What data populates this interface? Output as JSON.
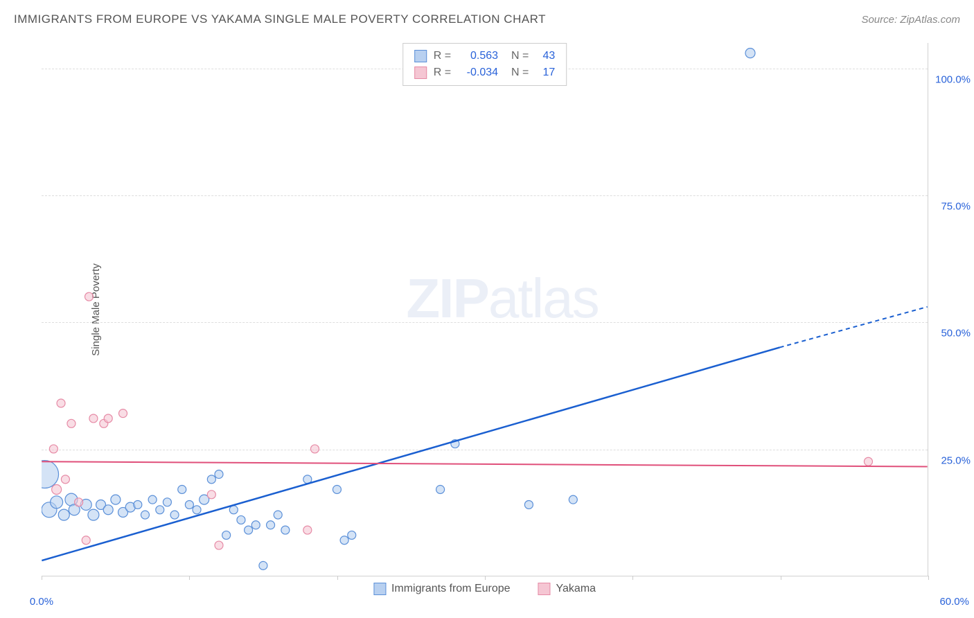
{
  "title": "IMMIGRANTS FROM EUROPE VS YAKAMA SINGLE MALE POVERTY CORRELATION CHART",
  "source": "Source: ZipAtlas.com",
  "ylabel": "Single Male Poverty",
  "watermark_a": "ZIP",
  "watermark_b": "atlas",
  "chart": {
    "type": "scatter",
    "xlim": [
      0,
      60
    ],
    "ylim": [
      0,
      105
    ],
    "xticks": [
      0,
      10,
      20,
      30,
      40,
      50,
      60
    ],
    "xticklabels": [
      "0.0%",
      "",
      "",
      "",
      "",
      "",
      "60.0%"
    ],
    "yticks": [
      25,
      50,
      75,
      100
    ],
    "yticklabels": [
      "25.0%",
      "50.0%",
      "75.0%",
      "100.0%"
    ],
    "grid_color": "#dddddd",
    "background_color": "#ffffff",
    "series": [
      {
        "name": "Immigrants from Europe",
        "r_value": "0.563",
        "n_value": "43",
        "fill_color": "#b8d0f0",
        "stroke_color": "#5a8fd8",
        "line_color": "#1a5fd0",
        "regression": {
          "x1": 0,
          "y1": 3,
          "x2": 50,
          "y2": 45,
          "x3": 60,
          "y3": 53,
          "dashed_from_x": 50
        },
        "points": [
          {
            "x": 0.2,
            "y": 20,
            "r": 20
          },
          {
            "x": 0.5,
            "y": 13,
            "r": 11
          },
          {
            "x": 1.0,
            "y": 14.5,
            "r": 9
          },
          {
            "x": 1.5,
            "y": 12,
            "r": 8
          },
          {
            "x": 2.0,
            "y": 15,
            "r": 9
          },
          {
            "x": 2.2,
            "y": 13,
            "r": 8
          },
          {
            "x": 3.0,
            "y": 14,
            "r": 8
          },
          {
            "x": 3.5,
            "y": 12,
            "r": 8
          },
          {
            "x": 4.0,
            "y": 14,
            "r": 7
          },
          {
            "x": 4.5,
            "y": 13,
            "r": 7
          },
          {
            "x": 5.0,
            "y": 15,
            "r": 7
          },
          {
            "x": 5.5,
            "y": 12.5,
            "r": 7
          },
          {
            "x": 6.0,
            "y": 13.5,
            "r": 7
          },
          {
            "x": 6.5,
            "y": 14,
            "r": 6
          },
          {
            "x": 7.0,
            "y": 12,
            "r": 6
          },
          {
            "x": 7.5,
            "y": 15,
            "r": 6
          },
          {
            "x": 8.0,
            "y": 13,
            "r": 6
          },
          {
            "x": 8.5,
            "y": 14.5,
            "r": 6
          },
          {
            "x": 9.0,
            "y": 12,
            "r": 6
          },
          {
            "x": 9.5,
            "y": 17,
            "r": 6
          },
          {
            "x": 10.0,
            "y": 14,
            "r": 6
          },
          {
            "x": 10.5,
            "y": 13,
            "r": 6
          },
          {
            "x": 11.0,
            "y": 15,
            "r": 7
          },
          {
            "x": 11.5,
            "y": 19,
            "r": 6
          },
          {
            "x": 12.0,
            "y": 20,
            "r": 6
          },
          {
            "x": 12.5,
            "y": 8,
            "r": 6
          },
          {
            "x": 13.0,
            "y": 13,
            "r": 6
          },
          {
            "x": 13.5,
            "y": 11,
            "r": 6
          },
          {
            "x": 14.0,
            "y": 9,
            "r": 6
          },
          {
            "x": 14.5,
            "y": 10,
            "r": 6
          },
          {
            "x": 15.0,
            "y": 2,
            "r": 6
          },
          {
            "x": 15.5,
            "y": 10,
            "r": 6
          },
          {
            "x": 16.0,
            "y": 12,
            "r": 6
          },
          {
            "x": 16.5,
            "y": 9,
            "r": 6
          },
          {
            "x": 18.0,
            "y": 19,
            "r": 6
          },
          {
            "x": 20.0,
            "y": 17,
            "r": 6
          },
          {
            "x": 20.5,
            "y": 7,
            "r": 6
          },
          {
            "x": 21.0,
            "y": 8,
            "r": 6
          },
          {
            "x": 27.0,
            "y": 17,
            "r": 6
          },
          {
            "x": 28.0,
            "y": 26,
            "r": 6
          },
          {
            "x": 33.0,
            "y": 14,
            "r": 6
          },
          {
            "x": 36.0,
            "y": 15,
            "r": 6
          },
          {
            "x": 48.0,
            "y": 103,
            "r": 7
          }
        ]
      },
      {
        "name": "Yakama",
        "r_value": "-0.034",
        "n_value": "17",
        "fill_color": "#f5c6d3",
        "stroke_color": "#e68aa5",
        "line_color": "#e04f7a",
        "regression": {
          "x1": 0,
          "y1": 22.5,
          "x2": 60,
          "y2": 21.5
        },
        "points": [
          {
            "x": 0.8,
            "y": 25,
            "r": 6
          },
          {
            "x": 1.0,
            "y": 17,
            "r": 7
          },
          {
            "x": 1.3,
            "y": 34,
            "r": 6
          },
          {
            "x": 1.6,
            "y": 19,
            "r": 6
          },
          {
            "x": 2.0,
            "y": 30,
            "r": 6
          },
          {
            "x": 2.5,
            "y": 14.5,
            "r": 6
          },
          {
            "x": 3.0,
            "y": 7,
            "r": 6
          },
          {
            "x": 3.2,
            "y": 55,
            "r": 6
          },
          {
            "x": 3.5,
            "y": 31,
            "r": 6
          },
          {
            "x": 4.2,
            "y": 30,
            "r": 6
          },
          {
            "x": 4.5,
            "y": 31,
            "r": 6
          },
          {
            "x": 5.5,
            "y": 32,
            "r": 6
          },
          {
            "x": 11.5,
            "y": 16,
            "r": 6
          },
          {
            "x": 12.0,
            "y": 6,
            "r": 6
          },
          {
            "x": 18.0,
            "y": 9,
            "r": 6
          },
          {
            "x": 18.5,
            "y": 25,
            "r": 6
          },
          {
            "x": 56.0,
            "y": 22.5,
            "r": 6
          }
        ]
      }
    ]
  },
  "legend": {
    "items": [
      {
        "label": "Immigrants from Europe",
        "fill": "#b8d0f0",
        "stroke": "#5a8fd8"
      },
      {
        "label": "Yakama",
        "fill": "#f5c6d3",
        "stroke": "#e68aa5"
      }
    ]
  },
  "stats_labels": {
    "r": "R =",
    "n": "N ="
  }
}
